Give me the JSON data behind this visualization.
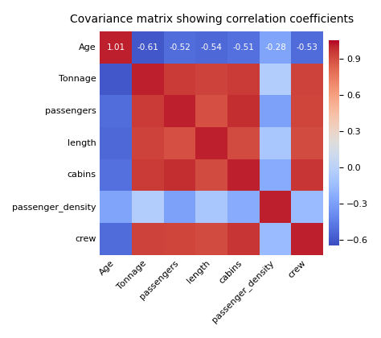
{
  "title": "Covariance matrix showing correlation coefficients",
  "labels": [
    "Age",
    "Tonnage",
    "passengers",
    "length",
    "cabins",
    "passenger_density",
    "crew"
  ],
  "matrix": [
    [
      1.01,
      -0.61,
      -0.52,
      -0.54,
      -0.51,
      -0.28,
      -0.53
    ],
    [
      -0.61,
      1.01,
      0.95,
      0.93,
      0.95,
      -0.04,
      0.93
    ],
    [
      -0.52,
      0.95,
      1.01,
      0.89,
      0.98,
      -0.3,
      0.92
    ],
    [
      -0.54,
      0.93,
      0.89,
      1.01,
      0.9,
      -0.09,
      0.9
    ],
    [
      -0.51,
      0.95,
      0.98,
      0.9,
      1.01,
      -0.25,
      0.96
    ],
    [
      -0.28,
      -0.04,
      -0.3,
      -0.09,
      -0.25,
      1.01,
      -0.16
    ],
    [
      -0.53,
      0.93,
      0.92,
      0.9,
      0.96,
      -0.16,
      1.01
    ]
  ],
  "vmin": -0.65,
  "vmax": 1.05,
  "cbar_ticks": [
    -0.6,
    -0.3,
    0.0,
    0.3,
    0.6,
    0.9
  ],
  "text_color": "white",
  "figsize": [
    4.74,
    4.2
  ],
  "dpi": 100,
  "title_fontsize": 10,
  "annot_fontsize": 7.5,
  "tick_fontsize": 8,
  "cbar_fontsize": 8
}
